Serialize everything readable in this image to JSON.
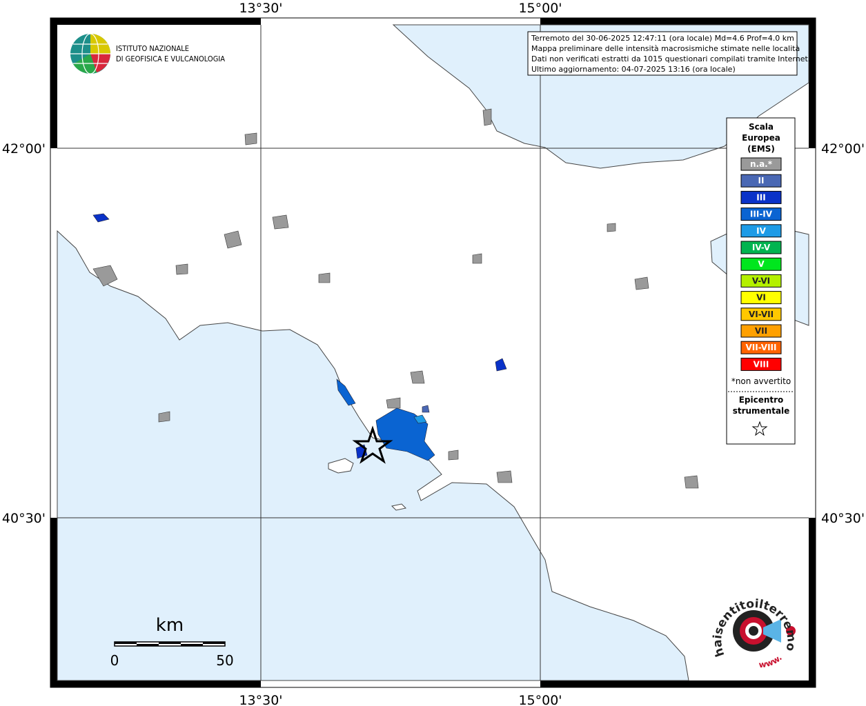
{
  "map": {
    "grid_labels": {
      "lon": [
        "13°30'",
        "15°00'"
      ],
      "lat": [
        "42°00'",
        "40°30'"
      ]
    },
    "institute": [
      "ISTITUTO NAZIONALE",
      "DI GEOFISICA E VULCANOLOGIA"
    ],
    "info": [
      "Terremoto del 30-06-2025 12:47:11 (ora locale) Md=4.6 Prof=4.0 km",
      "Mappa preliminare delle intensità macrosismiche stimate nelle località",
      "Dati non verificati estratti da 1015 questionari compilati tramite Internet.",
      "Ultimo aggiornamento: 04-07-2025 13:16 (ora locale)"
    ],
    "legend": {
      "title": [
        "Scala",
        "Europea",
        "(EMS)"
      ],
      "items": [
        {
          "label": "n.a.*",
          "color": "#9a9a9a"
        },
        {
          "label": "II",
          "color": "#4a68b4"
        },
        {
          "label": "III",
          "color": "#0a32c8"
        },
        {
          "label": "III-IV",
          "color": "#0a64d2"
        },
        {
          "label": "IV",
          "color": "#1e9be6"
        },
        {
          "label": "IV-V",
          "color": "#00b450"
        },
        {
          "label": "V",
          "color": "#00e61e"
        },
        {
          "label": "V-VI",
          "color": "#b4f000"
        },
        {
          "label": "VI",
          "color": "#ffff00"
        },
        {
          "label": "VI-VII",
          "color": "#ffc800"
        },
        {
          "label": "VII",
          "color": "#ffa000"
        },
        {
          "label": "VII-VIII",
          "color": "#ff6400"
        },
        {
          "label": "VIII",
          "color": "#ff0000"
        }
      ],
      "note": "*non avvertito",
      "epicenter": [
        "Epicentro",
        "strumentale"
      ]
    },
    "scale_bar": {
      "unit": "km",
      "labels": [
        0,
        50
      ]
    },
    "badge": {
      "text": "haisentitoilterremoto.it",
      "prefix": "www."
    }
  }
}
